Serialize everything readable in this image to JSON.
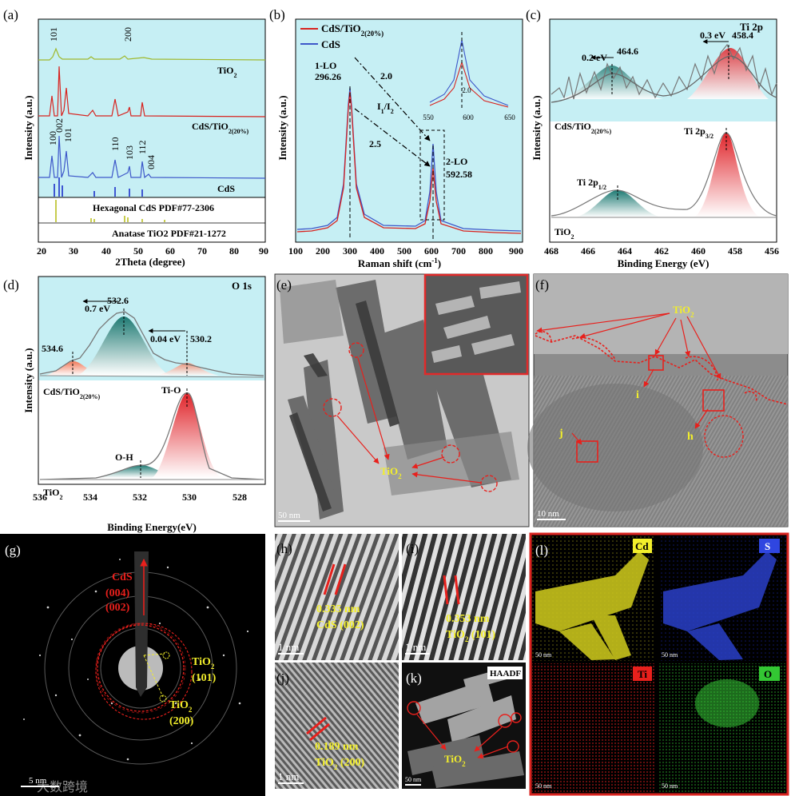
{
  "colors": {
    "panel_bg": "#c6eff4",
    "red": "#d8231f",
    "blue": "#3d57c9",
    "teal": "#2c8a84",
    "yellow": "#f2ee2b",
    "olive": "#a6b232"
  },
  "panel_a": {
    "label": "(a)",
    "xlabel": "2Theta (degree)",
    "ylabel": "Intensity (a.u.)",
    "xticks": [
      "20",
      "30",
      "40",
      "50",
      "60",
      "70",
      "80",
      "90"
    ],
    "curves": [
      "TiO2",
      "CdS/TiO2(20%)",
      "CdS"
    ],
    "tio2_peaks": [
      "101",
      "200"
    ],
    "cds_peaks": [
      "100",
      "002",
      "101",
      "110",
      "103",
      "112",
      "004"
    ],
    "ref_cds": "Hexagonal CdS PDF#77-2306",
    "ref_tio2": "Anatase TiO2 PDF#21-1272"
  },
  "panel_b": {
    "label": "(b)",
    "xlabel": "Raman shift (cm",
    "xlabel_sup": "-1",
    "ylabel": "Intensity (a.u.)",
    "xticks": [
      "100",
      "200",
      "300",
      "400",
      "500",
      "600",
      "700",
      "800",
      "900"
    ],
    "legend": [
      "CdS/TiO2(20%)",
      "CdS"
    ],
    "peak1": "1-LO",
    "peak1_pos": "296.26",
    "peak2": "2-LO",
    "peak2_pos": "592.58",
    "ratio_label": "I1/I2",
    "ratio_1": "2.0",
    "ratio_2": "2.5",
    "inset_ticks": [
      "550",
      "600",
      "650"
    ],
    "inset_val": "2.0"
  },
  "panel_c": {
    "label": "(c)",
    "title": "Ti 2p",
    "xlabel": "Binding Energy (eV)",
    "ylabel": "Intensity (a.u.)",
    "xticks": [
      "468",
      "466",
      "464",
      "462",
      "460",
      "458",
      "456"
    ],
    "shift1": "0.2 eV",
    "peak1": "464.6",
    "shift2": "0.3 eV",
    "peak2": "458.4",
    "top_sample": "CdS/TiO2(20%)",
    "bottom_sample": "TiO2",
    "p12": "Ti 2p1/2",
    "p32": "Ti 2p3/2"
  },
  "panel_d": {
    "label": "(d)",
    "title": "O 1s",
    "xlabel": "Binding Energy(eV)",
    "ylabel": "Intensity (a.u.)",
    "xticks": [
      "536",
      "534",
      "532",
      "530",
      "528"
    ],
    "shift1": "0.7 eV",
    "peak1": "532.6",
    "shift2": "0.04 eV",
    "peak2": "530.2",
    "peak3": "534.6",
    "top_sample": "CdS/TiO2(20%)",
    "bottom_sample": "TiO2",
    "tio": "Ti-O",
    "oh": "O-H"
  },
  "panel_e": {
    "label": "(e)",
    "tag": "TiO2",
    "scale": "50 nm"
  },
  "panel_f": {
    "label": "(f)",
    "tag": "TiO2",
    "i": "i",
    "j": "j",
    "h": "h",
    "scale": "10 nm"
  },
  "panel_g": {
    "label": "(g)",
    "cds": "CdS",
    "cds_004": "(004)",
    "cds_002": "(002)",
    "tio2_101": "TiO2",
    "tio2_101_idx": "(101)",
    "tio2_200": "TiO2",
    "tio2_200_idx": "(200)",
    "scale": "5 nm"
  },
  "panel_h": {
    "label": "(h)",
    "d": "0.335 nm",
    "phase": "CdS (002)",
    "scale": "1 nm"
  },
  "panel_i": {
    "label": "(i)",
    "d": "0.353 nm",
    "phase": "TiO2 (101)",
    "scale": "1 nm"
  },
  "panel_j": {
    "label": "(j)",
    "d": "0.189 nm",
    "phase": "TiO2 (200)",
    "scale": "1 nm"
  },
  "panel_k": {
    "label": "(k)",
    "badge": "HAADF",
    "tag": "TiO2",
    "scale": "50 nm"
  },
  "panel_l": {
    "label": "(l)",
    "cd": "Cd",
    "s": "S",
    "ti": "Ti",
    "o": "O",
    "scale": "50 nm"
  },
  "watermark": "大数跨境"
}
